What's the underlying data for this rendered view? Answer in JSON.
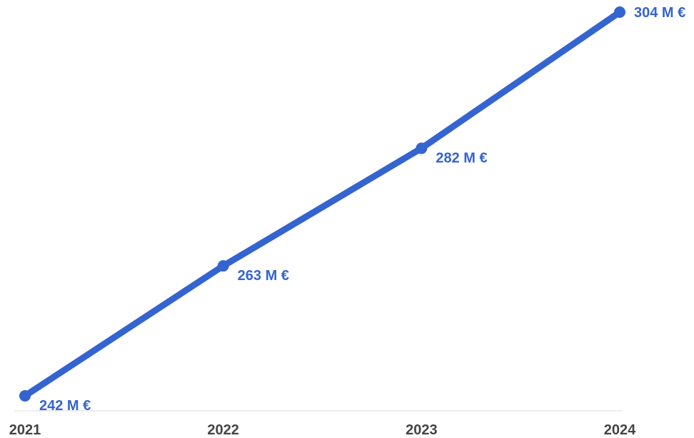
{
  "chart_data": {
    "type": "line",
    "categories": [
      "2021",
      "2022",
      "2023",
      "2024"
    ],
    "series": [
      {
        "values": [
          242,
          263,
          282,
          304
        ],
        "data_labels": [
          "242 M €",
          "263 M €",
          "282 M €",
          "304 M €"
        ]
      }
    ],
    "title": "",
    "xlabel": "",
    "ylabel": "",
    "ylim": [
      242,
      304
    ],
    "grid": false,
    "legend": "none",
    "y_axis_visible": false
  },
  "colors": {
    "line": "#3464D0",
    "label": "#3464D0",
    "tick": "#444444",
    "axis": "#DDDDDD"
  }
}
